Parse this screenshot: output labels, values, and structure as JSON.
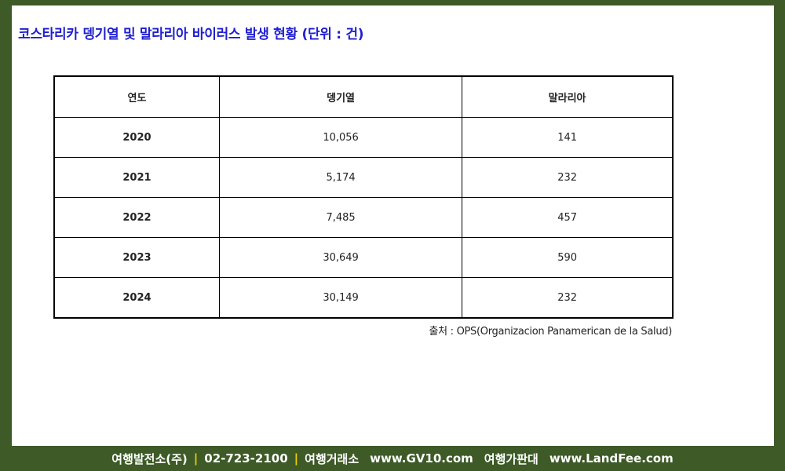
{
  "title": "코스타리카 뎅기열 및 말라리아 바이러스 발생 현황 (단위 : 건)",
  "table": {
    "headers": [
      "연도",
      "뎅기열",
      "말라리아"
    ],
    "rows": [
      {
        "year": "2020",
        "dengue": "10,056",
        "malaria": "141"
      },
      {
        "year": "2021",
        "dengue": "5,174",
        "malaria": "232"
      },
      {
        "year": "2022",
        "dengue": "7,485",
        "malaria": "457"
      },
      {
        "year": "2023",
        "dengue": "30,649",
        "malaria": "590"
      },
      {
        "year": "2024",
        "dengue": "30,149",
        "malaria": "232"
      }
    ]
  },
  "source": "출처 : OPS(Organizacion Panamerican de la Salud)",
  "footer": {
    "company": "여행발전소(주)",
    "sep1": "|",
    "phone": "02-723-2100",
    "sep2": "|",
    "label1": "여행거래소",
    "site1": "www.GV10.com",
    "label2": "여행가판대",
    "site2": "www.LandFee.com"
  },
  "colors": {
    "frame": "#3d5a27",
    "title": "#1f1fd1",
    "separator": "#f0d000"
  }
}
